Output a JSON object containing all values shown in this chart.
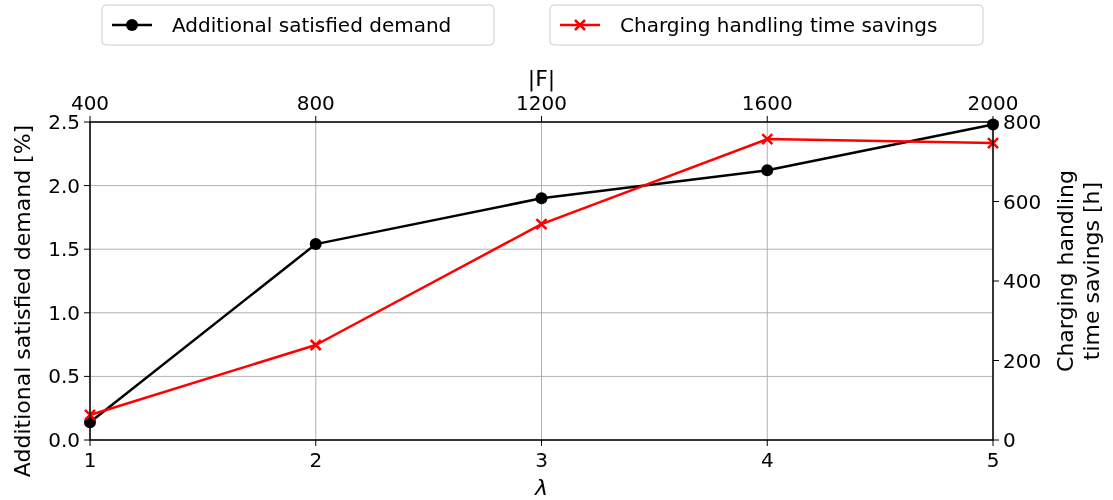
{
  "chart_data": {
    "type": "line",
    "x": [
      1,
      2,
      3,
      4,
      5
    ],
    "xlim": [
      1,
      5
    ],
    "xticks": [
      1,
      2,
      3,
      4,
      5
    ],
    "xlabel": "λ",
    "x2lim": [
      400,
      2000
    ],
    "x2ticks": [
      400,
      800,
      1200,
      1600,
      2000
    ],
    "x2label": "|F|",
    "ylabel": "Additional satisfied demand [%]",
    "ylim": [
      0,
      2.5
    ],
    "yticks": [
      {
        "value": 0,
        "label": "0.0"
      },
      {
        "value": 0.5,
        "label": "0.5"
      },
      {
        "value": 1,
        "label": "1.0"
      },
      {
        "value": 1.5,
        "label": "1.5"
      },
      {
        "value": 2,
        "label": "2.0"
      },
      {
        "value": 2.5,
        "label": "2.5"
      }
    ],
    "y2label": "Charging handling\ntime savings [h]",
    "y2lim": [
      0,
      800
    ],
    "y2ticks": [
      0,
      200,
      400,
      600,
      800
    ],
    "grid": true,
    "legend": "top",
    "series": [
      {
        "name": "Additional satisfied demand",
        "color": "#000000",
        "marker": "circle",
        "values": [
          0.14,
          1.54,
          1.9,
          2.12,
          2.48
        ]
      },
      {
        "name": "Charging handling time savings",
        "color": "#ff0000",
        "marker": "cross",
        "axis": "y2",
        "values": [
          63,
          239,
          543,
          757,
          747
        ]
      }
    ]
  }
}
